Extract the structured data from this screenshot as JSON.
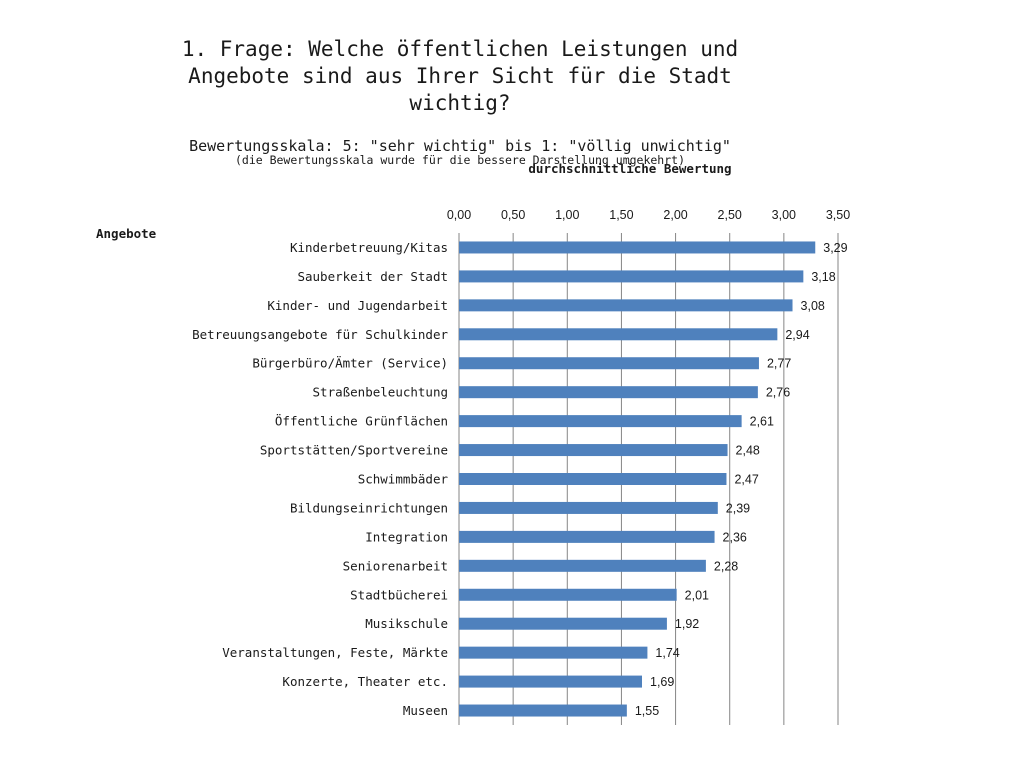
{
  "title_lines": [
    "1. Frage: Welche öffentlichen Leistungen und",
    "Angebote sind aus Ihrer Sicht für die Stadt",
    "wichtig?"
  ],
  "scale_note": "Bewertungsskala: 5: \"sehr wichtig\" bis 1: \"völlig unwichtig\"",
  "scale_subnote": "(die Bewertungsskala wurde für die bessere Darstellung umgekehrt)",
  "colors": {
    "bar": "#4f81bd",
    "grid": "#868686",
    "text": "#1a1a1a"
  },
  "chart_data": {
    "type": "bar",
    "orientation": "horizontal",
    "xlabel": "durchschnittliche Bewertung",
    "ylabel": "Angebote",
    "xlim": [
      0,
      3.5
    ],
    "x_ticks": [
      "0,00",
      "0,50",
      "1,00",
      "1,50",
      "2,00",
      "2,50",
      "3,00",
      "3,50"
    ],
    "x_axis_position": "top",
    "grid": true,
    "categories": [
      "Kinderbetreuung/Kitas",
      "Sauberkeit der Stadt",
      "Kinder- und Jugendarbeit",
      "Betreuungsangebote für Schulkinder",
      "Bürgerbüro/Ämter (Service)",
      "Straßenbeleuchtung",
      "Öffentliche Grünflächen",
      "Sportstätten/Sportvereine",
      "Schwimmbäder",
      "Bildungseinrichtungen",
      "Integration",
      "Seniorenarbeit",
      "Stadtbücherei",
      "Musikschule",
      "Veranstaltungen, Feste, Märkte",
      "Konzerte, Theater etc.",
      "Museen"
    ],
    "values": [
      3.29,
      3.18,
      3.08,
      2.94,
      2.77,
      2.76,
      2.61,
      2.48,
      2.47,
      2.39,
      2.36,
      2.28,
      2.01,
      1.92,
      1.74,
      1.69,
      1.55
    ],
    "value_labels": [
      "3,29",
      "3,18",
      "3,08",
      "2,94",
      "2,77",
      "2,76",
      "2,61",
      "2,48",
      "2,47",
      "2,39",
      "2,36",
      "2,28",
      "2,01",
      "1,92",
      "1,74",
      "1,69",
      "1,55"
    ]
  }
}
